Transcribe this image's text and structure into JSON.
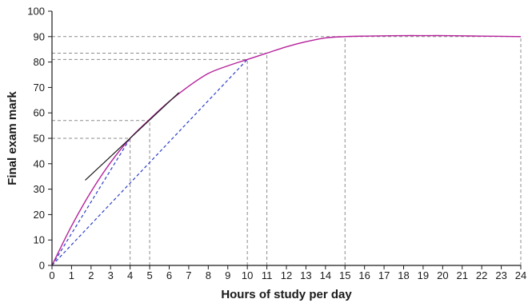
{
  "chart_data": {
    "type": "line",
    "title": "",
    "xlabel": "Hours of study per day",
    "ylabel": "Final exam mark",
    "xlim": [
      0,
      24
    ],
    "ylim": [
      0,
      100
    ],
    "x_ticks": [
      0,
      1,
      2,
      3,
      4,
      5,
      6,
      7,
      8,
      9,
      10,
      11,
      12,
      13,
      14,
      15,
      16,
      17,
      18,
      19,
      20,
      21,
      22,
      23,
      24
    ],
    "y_ticks": [
      0,
      10,
      20,
      30,
      40,
      50,
      60,
      70,
      80,
      90,
      100
    ],
    "grid": false,
    "series": [
      {
        "color": "#b5229b",
        "style": "solid",
        "x": [
          0,
          1,
          2,
          3,
          4,
          5,
          6,
          7,
          8,
          9,
          10,
          11,
          12,
          13,
          14,
          15,
          16,
          17,
          18,
          19,
          20,
          21,
          22,
          23,
          24
        ],
        "y": [
          0,
          15.5,
          29,
          40.5,
          50,
          57.5,
          64.5,
          70.5,
          75.5,
          78.5,
          81,
          83.5,
          86,
          88,
          89.5,
          90,
          90.2,
          90.3,
          90.4,
          90.4,
          90.4,
          90.3,
          90.2,
          90.1,
          90
        ]
      }
    ],
    "tangent_line": {
      "color": "#1a1a1a",
      "x": [
        1.7,
        6.5
      ],
      "y": [
        33.5,
        68
      ]
    },
    "chords": [
      {
        "color": "#2c3ec8",
        "style": "dashed",
        "x": [
          0,
          4
        ],
        "y": [
          0,
          50
        ]
      },
      {
        "color": "#2c3ec8",
        "style": "dashed",
        "x": [
          0,
          10
        ],
        "y": [
          0,
          81
        ]
      }
    ],
    "reference_lines": {
      "color": "#8c8c8c",
      "style": "dashed",
      "vertical": [
        {
          "x": 4,
          "y_top": 50
        },
        {
          "x": 5,
          "y_top": 57
        },
        {
          "x": 10,
          "y_top": 81
        },
        {
          "x": 11,
          "y_top": 83.5
        },
        {
          "x": 15,
          "y_top": 90
        },
        {
          "x": 24,
          "y_top": 90
        }
      ],
      "horizontal": [
        {
          "y": 50,
          "x_right": 4
        },
        {
          "y": 57,
          "x_right": 5
        },
        {
          "y": 81,
          "x_right": 10
        },
        {
          "y": 83.5,
          "x_right": 11
        },
        {
          "y": 90,
          "x_right": 24
        }
      ]
    }
  }
}
